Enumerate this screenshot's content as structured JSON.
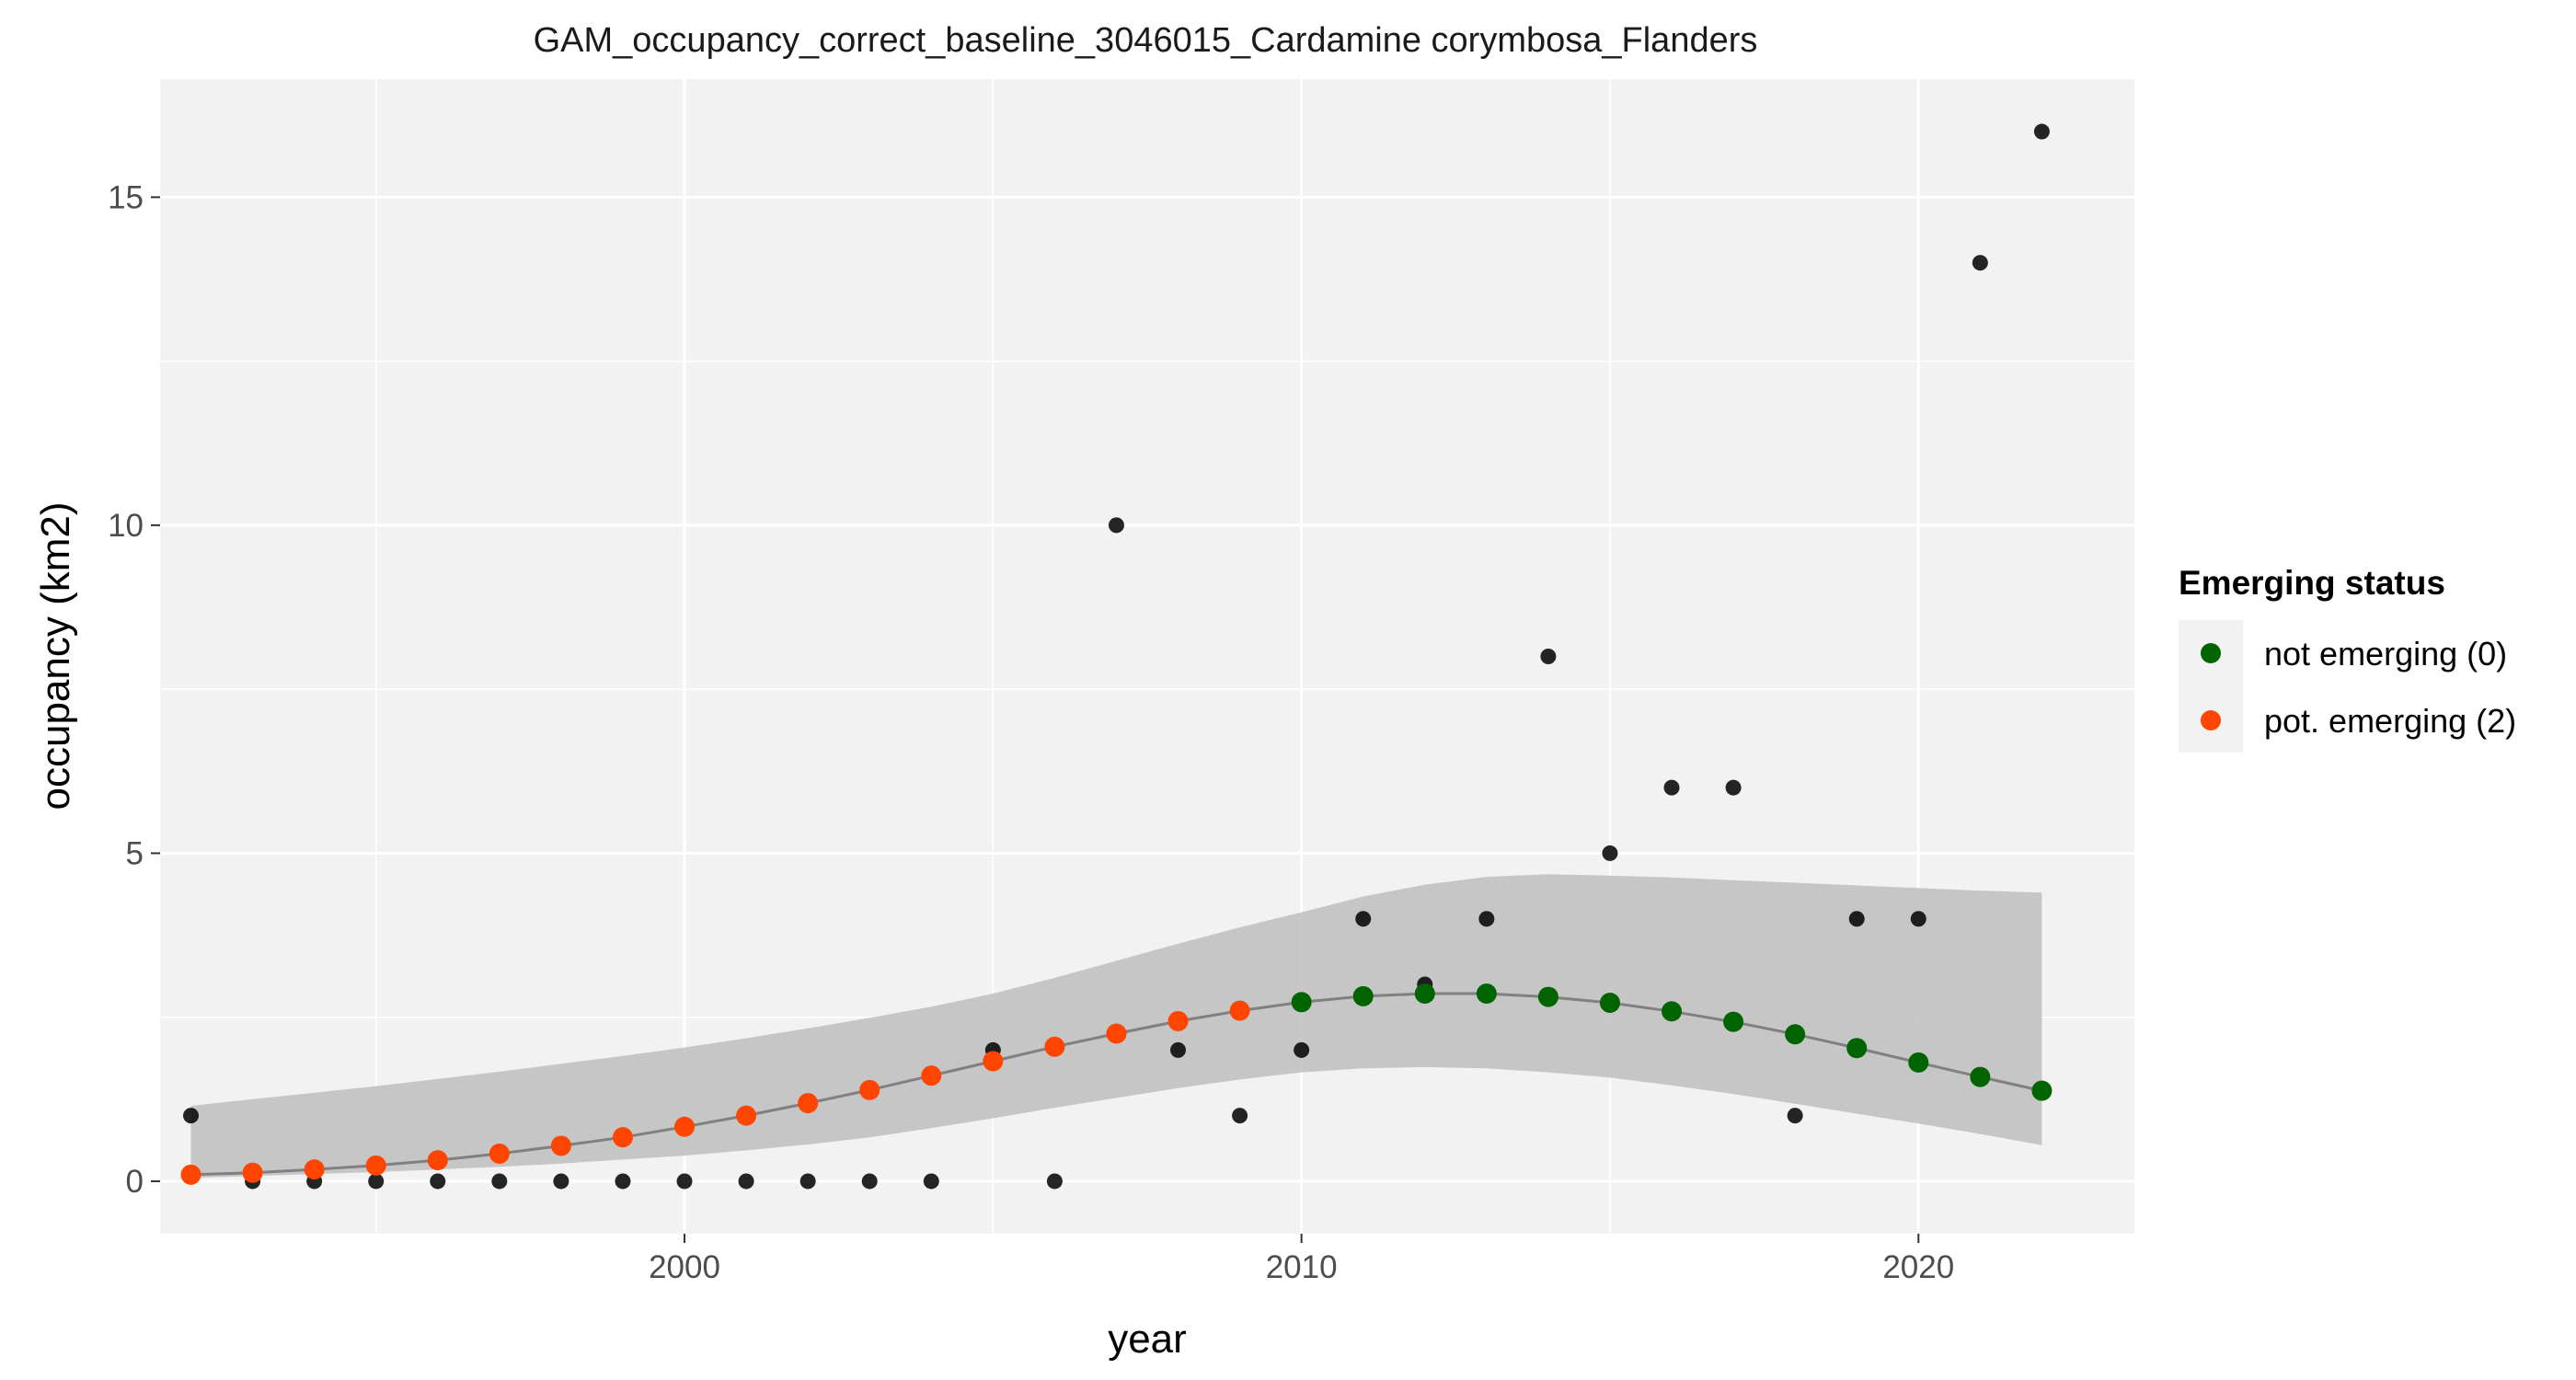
{
  "chart_data": {
    "type": "scatter",
    "title": "GAM_occupancy_correct_baseline_3046015_Cardamine corymbosa_Flanders",
    "xlabel": "year",
    "ylabel": "occupancy (km2)",
    "xlim": [
      1991.5,
      2023.5
    ],
    "ylim": [
      -0.8,
      16.8
    ],
    "x_ticks": [
      2000,
      2010,
      2020
    ],
    "x_tick_labels": [
      "2000",
      "2010",
      "2020"
    ],
    "y_ticks": [
      0,
      5,
      10,
      15
    ],
    "y_tick_labels": [
      "0",
      "5",
      "10",
      "15"
    ],
    "grid": true,
    "legend_position": "right",
    "legend": {
      "title": "Emerging status",
      "items": [
        {
          "label": "not emerging (0)",
          "color": "#006400"
        },
        {
          "label": "pot. emerging (2)",
          "color": "#FF4500"
        }
      ]
    },
    "colors": {
      "panel": "#F2F2F2",
      "grid": "#FFFFFF",
      "observed": "#000000",
      "ribbon": "#BEBEBE",
      "fit_line": "#808080"
    },
    "observed": {
      "x": [
        1992,
        1993,
        1994,
        1995,
        1996,
        1997,
        1998,
        1999,
        2000,
        2001,
        2002,
        2003,
        2004,
        2005,
        2006,
        2007,
        2008,
        2009,
        2010,
        2011,
        2012,
        2013,
        2014,
        2015,
        2016,
        2017,
        2018,
        2019,
        2020,
        2021,
        2022
      ],
      "y": [
        1,
        0,
        0,
        0,
        0,
        0,
        0,
        0,
        0,
        0,
        0,
        0,
        0,
        2,
        0,
        10,
        2,
        1,
        2,
        4,
        3,
        4,
        8,
        5,
        6,
        6,
        1,
        4,
        4,
        14,
        16
      ]
    },
    "fit": {
      "x": [
        1992,
        1993,
        1994,
        1995,
        1996,
        1997,
        1998,
        1999,
        2000,
        2001,
        2002,
        2003,
        2004,
        2005,
        2006,
        2007,
        2008,
        2009,
        2010,
        2011,
        2012,
        2013,
        2014,
        2015,
        2016,
        2017,
        2018,
        2019,
        2020,
        2021,
        2022
      ],
      "y": [
        0.1,
        0.13,
        0.18,
        0.24,
        0.32,
        0.42,
        0.54,
        0.67,
        0.83,
        1.0,
        1.19,
        1.39,
        1.61,
        1.83,
        2.05,
        2.25,
        2.44,
        2.6,
        2.73,
        2.82,
        2.86,
        2.86,
        2.81,
        2.72,
        2.59,
        2.43,
        2.24,
        2.03,
        1.81,
        1.59,
        1.38
      ],
      "lower": [
        0.05,
        0.08,
        0.11,
        0.14,
        0.18,
        0.22,
        0.27,
        0.33,
        0.39,
        0.47,
        0.56,
        0.67,
        0.81,
        0.96,
        1.12,
        1.27,
        1.42,
        1.55,
        1.66,
        1.72,
        1.74,
        1.72,
        1.66,
        1.58,
        1.46,
        1.33,
        1.18,
        1.03,
        0.88,
        0.72,
        0.55
      ],
      "upper": [
        1.15,
        1.25,
        1.35,
        1.45,
        1.56,
        1.67,
        1.79,
        1.91,
        2.04,
        2.18,
        2.33,
        2.49,
        2.66,
        2.86,
        3.1,
        3.36,
        3.62,
        3.87,
        4.1,
        4.34,
        4.52,
        4.64,
        4.68,
        4.66,
        4.63,
        4.59,
        4.55,
        4.51,
        4.47,
        4.43,
        4.4
      ],
      "status": [
        "pot",
        "pot",
        "pot",
        "pot",
        "pot",
        "pot",
        "pot",
        "pot",
        "pot",
        "pot",
        "pot",
        "pot",
        "pot",
        "pot",
        "pot",
        "pot",
        "pot",
        "pot",
        "not",
        "not",
        "not",
        "not",
        "not",
        "not",
        "not",
        "not",
        "not",
        "not",
        "not",
        "not",
        "not"
      ]
    }
  }
}
